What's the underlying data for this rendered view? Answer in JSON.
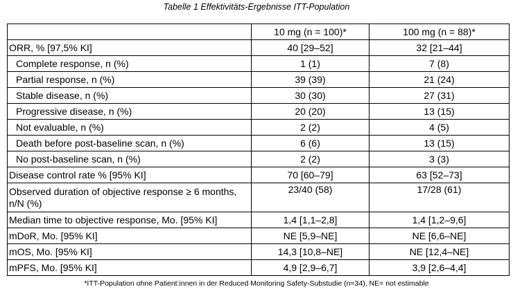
{
  "caption": "Tabelle 1 Effektivitäts-Ergebnisse ITT-Population",
  "table": {
    "headers": [
      "",
      "10 mg (n = 100)*",
      "100 mg (n = 88)*"
    ],
    "rows": [
      {
        "label": "ORR, % [97,5% KI]",
        "indent": false,
        "c10": "40 [29–52]",
        "c100": "32 [21–44]"
      },
      {
        "label": "Complete response, n (%)",
        "indent": true,
        "c10": "1 (1)",
        "c100": "7 (8)"
      },
      {
        "label": "Partial response, n (%)",
        "indent": true,
        "c10": "39 (39)",
        "c100": "21 (24)"
      },
      {
        "label": "Stable disease, n (%)",
        "indent": true,
        "c10": "30 (30)",
        "c100": "27 (31)"
      },
      {
        "label": "Progressive disease, n (%)",
        "indent": true,
        "c10": "20 (20)",
        "c100": "13 (15)"
      },
      {
        "label": "Not evaluable, n (%)",
        "indent": true,
        "c10": "2 (2)",
        "c100": "4 (5)"
      },
      {
        "label": "Death before post-baseline scan, n (%)",
        "indent": true,
        "c10": "6 (6)",
        "c100": "13 (15)"
      },
      {
        "label": "No post-baseline scan, n (%)",
        "indent": true,
        "c10": "2 (2)",
        "c100": "3 (3)"
      },
      {
        "label": "Disease control rate % [95% KI]",
        "indent": false,
        "c10": "70 [60–79]",
        "c100": "63 [52–73]"
      },
      {
        "label": "Observed duration of objective response ≥ 6 months, n/N (%)",
        "indent": false,
        "c10": "23/40 (58)",
        "c100": "17/28 (61)"
      },
      {
        "label": "Median time to objective response, Mo. [95% KI]",
        "indent": false,
        "c10": "1,4 [1,1–2,8]",
        "c100": "1,4 [1,2–9,6]"
      },
      {
        "label": "mDoR, Mo. [95% KI]",
        "indent": false,
        "c10": "NE [5,9–NE]",
        "c100": "NE [6,6–NE]"
      },
      {
        "label": "mOS, Mo. [95% KI]",
        "indent": false,
        "c10": "14,3 [10,8–NE]",
        "c100": "NE [12,4–NE]"
      },
      {
        "label": "mPFS, Mo. [95% KI]",
        "indent": false,
        "c10": "4,9 [2,9–6,7]",
        "c100": "3,9 [2,6–4,4]"
      }
    ]
  },
  "footnote": "*ITT-Population ohne Patient:innen in der Reduced Monitoring Safety-Substudie (n=34), NE= not estimable"
}
